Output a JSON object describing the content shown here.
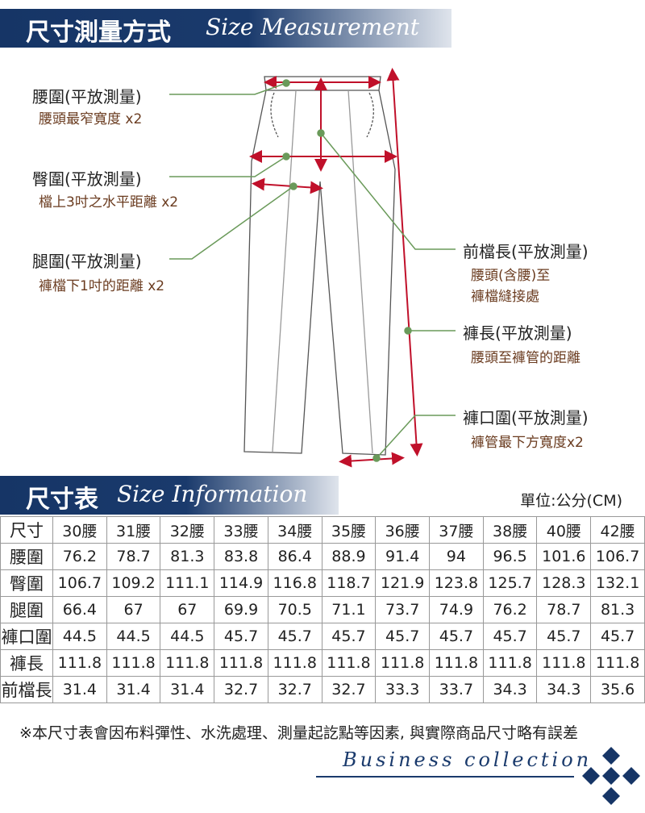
{
  "measure": {
    "title_zh": "尺寸測量方式",
    "title_en": "Size Measurement",
    "labels": [
      {
        "title": "腰圍(平放測量)",
        "desc": "腰頭最窄寬度 x2"
      },
      {
        "title": "臀圍(平放測量)",
        "desc": "檔上3吋之水平距離 x2"
      },
      {
        "title": "腿圍(平放測量)",
        "desc": "褲檔下1吋的距離 x2"
      },
      {
        "title": "前檔長(平放測量)",
        "desc": "腰頭(含腰)至",
        "desc2": "褲檔縫接處"
      },
      {
        "title": "褲長(平放測量)",
        "desc": "腰頭至褲管的距離"
      },
      {
        "title": "褲口圍(平放測量)",
        "desc": "褲管最下方寬度x2"
      }
    ]
  },
  "size_table": {
    "title_zh": "尺寸表",
    "title_en": "Size Information",
    "unit": "單位:公分(CM)",
    "header": [
      "尺寸",
      "30腰",
      "31腰",
      "32腰",
      "33腰",
      "34腰",
      "35腰",
      "36腰",
      "37腰",
      "38腰",
      "40腰",
      "42腰"
    ],
    "rows": [
      [
        "腰圍",
        "76.2",
        "78.7",
        "81.3",
        "83.8",
        "86.4",
        "88.9",
        "91.4",
        "94",
        "96.5",
        "101.6",
        "106.7"
      ],
      [
        "臀圍",
        "106.7",
        "109.2",
        "111.1",
        "114.9",
        "116.8",
        "118.7",
        "121.9",
        "123.8",
        "125.7",
        "128.3",
        "132.1"
      ],
      [
        "腿圍",
        "66.4",
        "67",
        "67",
        "69.9",
        "70.5",
        "71.1",
        "73.7",
        "74.9",
        "76.2",
        "78.7",
        "81.3"
      ],
      [
        "褲口圍",
        "44.5",
        "44.5",
        "44.5",
        "45.7",
        "45.7",
        "45.7",
        "45.7",
        "45.7",
        "45.7",
        "45.7",
        "45.7"
      ],
      [
        "褲長",
        "111.8",
        "111.8",
        "111.8",
        "111.8",
        "111.8",
        "111.8",
        "111.8",
        "111.8",
        "111.8",
        "111.8",
        "111.8"
      ],
      [
        "前檔長",
        "31.4",
        "31.4",
        "31.4",
        "32.7",
        "32.7",
        "32.7",
        "33.3",
        "33.7",
        "34.3",
        "34.3",
        "35.6"
      ]
    ]
  },
  "note": "※本尺寸表會因布料彈性、水洗處理、測量起訖點等因素, 與實際商品尺寸略有誤差",
  "brand": "Business collection",
  "colors": {
    "navy": "#163566",
    "arrow": "#c0102a",
    "leader": "#6a9a5a"
  }
}
